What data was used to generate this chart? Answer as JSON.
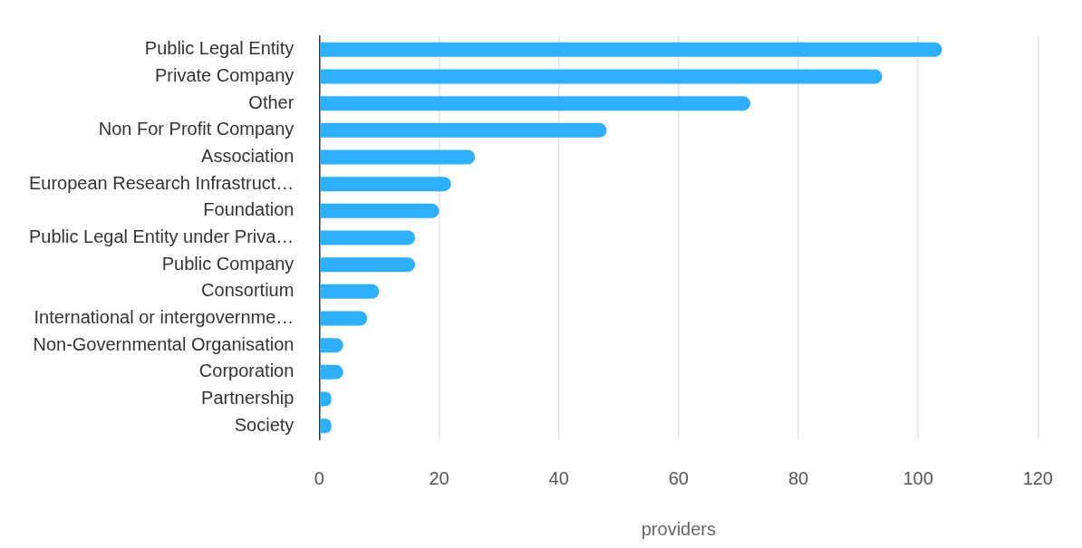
{
  "chart_data": {
    "type": "bar",
    "orientation": "horizontal",
    "xlabel": "providers",
    "categories": [
      "Public Legal Entity",
      "Private Company",
      "Other",
      "Non For Profit Company",
      "Association",
      "European Research Infrastruct…",
      "Foundation",
      "Public Legal Entity under Priva…",
      "Public Company",
      "Consortium",
      "International or intergovernme…",
      "Non-Governmental Organisation",
      "Corporation",
      "Partnership",
      "Society"
    ],
    "values": [
      104,
      94,
      72,
      48,
      26,
      22,
      20,
      16,
      16,
      10,
      8,
      4,
      4,
      2,
      2
    ],
    "color": "#2eb0ff",
    "xlim": [
      0,
      120
    ],
    "xticks": [
      0,
      20,
      40,
      60,
      80,
      100,
      120
    ],
    "grid": "x",
    "legend": false
  }
}
